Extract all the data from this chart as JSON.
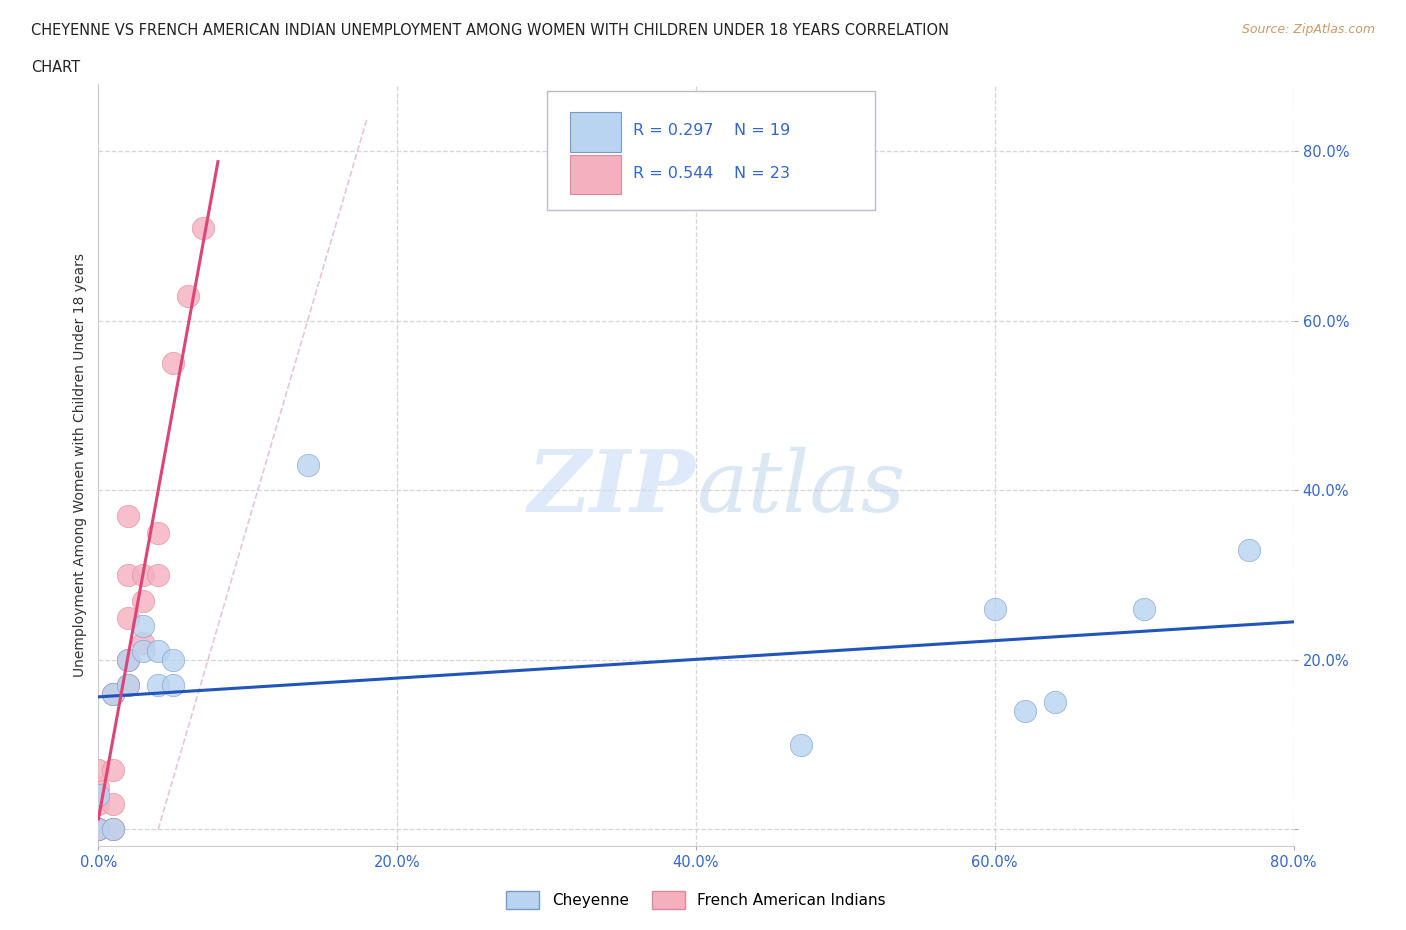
{
  "title_line1": "CHEYENNE VS FRENCH AMERICAN INDIAN UNEMPLOYMENT AMONG WOMEN WITH CHILDREN UNDER 18 YEARS CORRELATION",
  "title_line2": "CHART",
  "source": "Source: ZipAtlas.com",
  "ylabel": "Unemployment Among Women with Children Under 18 years",
  "xlim": [
    0.0,
    0.8
  ],
  "ylim": [
    -0.02,
    0.88
  ],
  "xticks": [
    0.0,
    0.2,
    0.4,
    0.6,
    0.8
  ],
  "yticks": [
    0.0,
    0.2,
    0.4,
    0.6,
    0.8
  ],
  "xticklabels": [
    "0.0%",
    "20.0%",
    "40.0%",
    "60.0%",
    "80.0%"
  ],
  "yticklabels": [
    "",
    "20.0%",
    "40.0%",
    "60.0%",
    "80.0%"
  ],
  "grid_color": "#cccccc",
  "cheyenne_color": "#b8d4f0",
  "cheyenne_edge": "#7799cc",
  "french_color": "#f5b0c0",
  "french_edge": "#dd8899",
  "trend_blue": "#2255bb",
  "trend_pink": "#dd4477",
  "trend_dash_color": "#ccbbdd",
  "R_cheyenne": 0.297,
  "N_cheyenne": 19,
  "R_french": 0.544,
  "N_french": 23,
  "cheyenne_x": [
    0.0,
    0.0,
    0.01,
    0.01,
    0.02,
    0.02,
    0.03,
    0.03,
    0.04,
    0.04,
    0.05,
    0.05,
    0.14,
    0.47,
    0.6,
    0.64,
    0.7,
    0.77,
    0.62
  ],
  "cheyenne_y": [
    0.0,
    0.04,
    0.0,
    0.16,
    0.17,
    0.2,
    0.21,
    0.24,
    0.17,
    0.21,
    0.17,
    0.2,
    0.43,
    0.1,
    0.26,
    0.15,
    0.26,
    0.33,
    0.14
  ],
  "french_x": [
    0.0,
    0.0,
    0.0,
    0.0,
    0.0,
    0.0,
    0.01,
    0.01,
    0.01,
    0.01,
    0.02,
    0.02,
    0.02,
    0.02,
    0.02,
    0.03,
    0.03,
    0.03,
    0.04,
    0.04,
    0.05,
    0.06,
    0.07
  ],
  "french_y": [
    0.0,
    0.0,
    0.0,
    0.03,
    0.05,
    0.07,
    0.0,
    0.03,
    0.07,
    0.16,
    0.17,
    0.2,
    0.25,
    0.3,
    0.37,
    0.22,
    0.27,
    0.3,
    0.3,
    0.35,
    0.55,
    0.63,
    0.71
  ]
}
